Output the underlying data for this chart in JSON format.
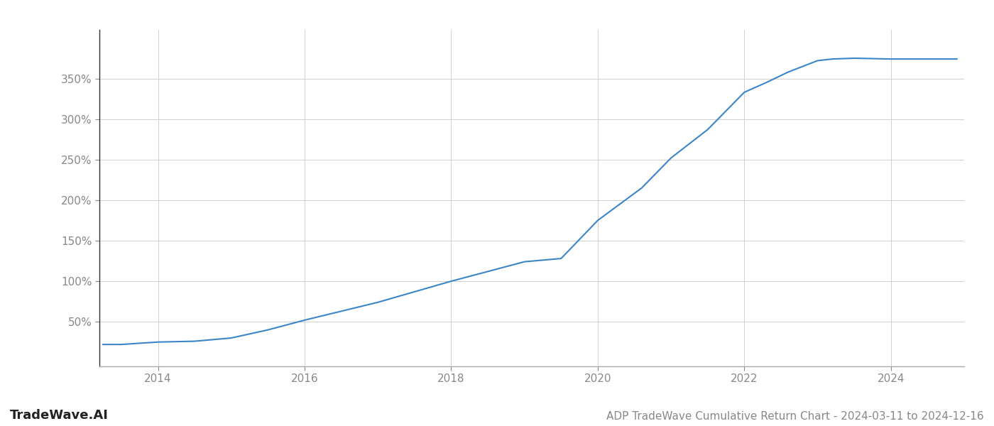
{
  "title": "ADP TradeWave Cumulative Return Chart - 2024-03-11 to 2024-12-16",
  "watermark": "TradeWave.AI",
  "line_color": "#3a86c8",
  "background_color": "#ffffff",
  "grid_color": "#d0d0d0",
  "x_years": [
    2013.25,
    2013.5,
    2014.0,
    2014.5,
    2015.0,
    2015.5,
    2016.0,
    2016.5,
    2017.0,
    2017.5,
    2018.0,
    2018.5,
    2019.0,
    2019.25,
    2019.5,
    2020.0,
    2020.3,
    2020.6,
    2021.0,
    2021.5,
    2022.0,
    2022.3,
    2022.6,
    2023.0,
    2023.2,
    2023.5,
    2024.0,
    2024.9
  ],
  "y_values": [
    22,
    22,
    25,
    26,
    30,
    40,
    52,
    63,
    74,
    87,
    100,
    112,
    124,
    126,
    128,
    175,
    195,
    215,
    252,
    287,
    333,
    345,
    358,
    372,
    374,
    375,
    374,
    374
  ],
  "xlim": [
    2013.2,
    2025.0
  ],
  "ylim": [
    -5,
    410
  ],
  "yticks": [
    50,
    100,
    150,
    200,
    250,
    300,
    350
  ],
  "xticks": [
    2014,
    2016,
    2018,
    2020,
    2022,
    2024
  ],
  "tick_fontsize": 11,
  "title_fontsize": 11,
  "watermark_fontsize": 13,
  "line_width": 1.5,
  "spine_color": "#aaaaaa",
  "left_spine_color": "#333333"
}
